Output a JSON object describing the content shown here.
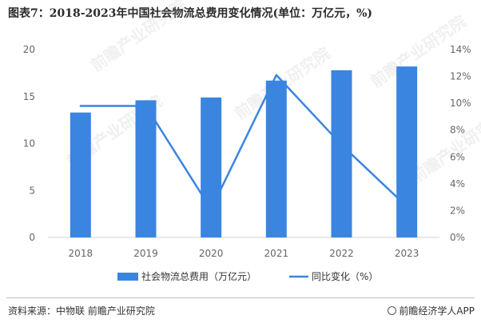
{
  "title": "图表7：2018-2023年中国社会物流总费用变化情况(单位：万亿元，%)",
  "footer": {
    "source": "资料来源：中物联 前瞻产业研究院",
    "brand": "前瞻经济学人APP"
  },
  "watermark": "前瞻产业研究院",
  "chart_data": {
    "type": "bar",
    "categories": [
      "2018",
      "2019",
      "2020",
      "2021",
      "2022",
      "2023"
    ],
    "series": [
      {
        "name": "社会物流总费用（万亿元）",
        "type": "bar",
        "axis": "left",
        "values": [
          13.3,
          14.6,
          14.9,
          16.7,
          17.8,
          18.2
        ],
        "color": "#3a85e0"
      },
      {
        "name": "同比变化（%）",
        "type": "line",
        "axis": "right",
        "values": [
          9.8,
          9.8,
          2.1,
          12.1,
          6.9,
          2.3
        ],
        "color": "#3a85e0"
      }
    ],
    "y_left": {
      "min": 0,
      "max": 20,
      "ticks": [
        "0",
        "5",
        "10",
        "15",
        "20"
      ]
    },
    "y_right": {
      "min": 0,
      "max": 14,
      "ticks": [
        "0%",
        "2%",
        "4%",
        "6%",
        "8%",
        "10%",
        "12%",
        "14%"
      ]
    },
    "grid": false,
    "legend_position": "bottom"
  }
}
